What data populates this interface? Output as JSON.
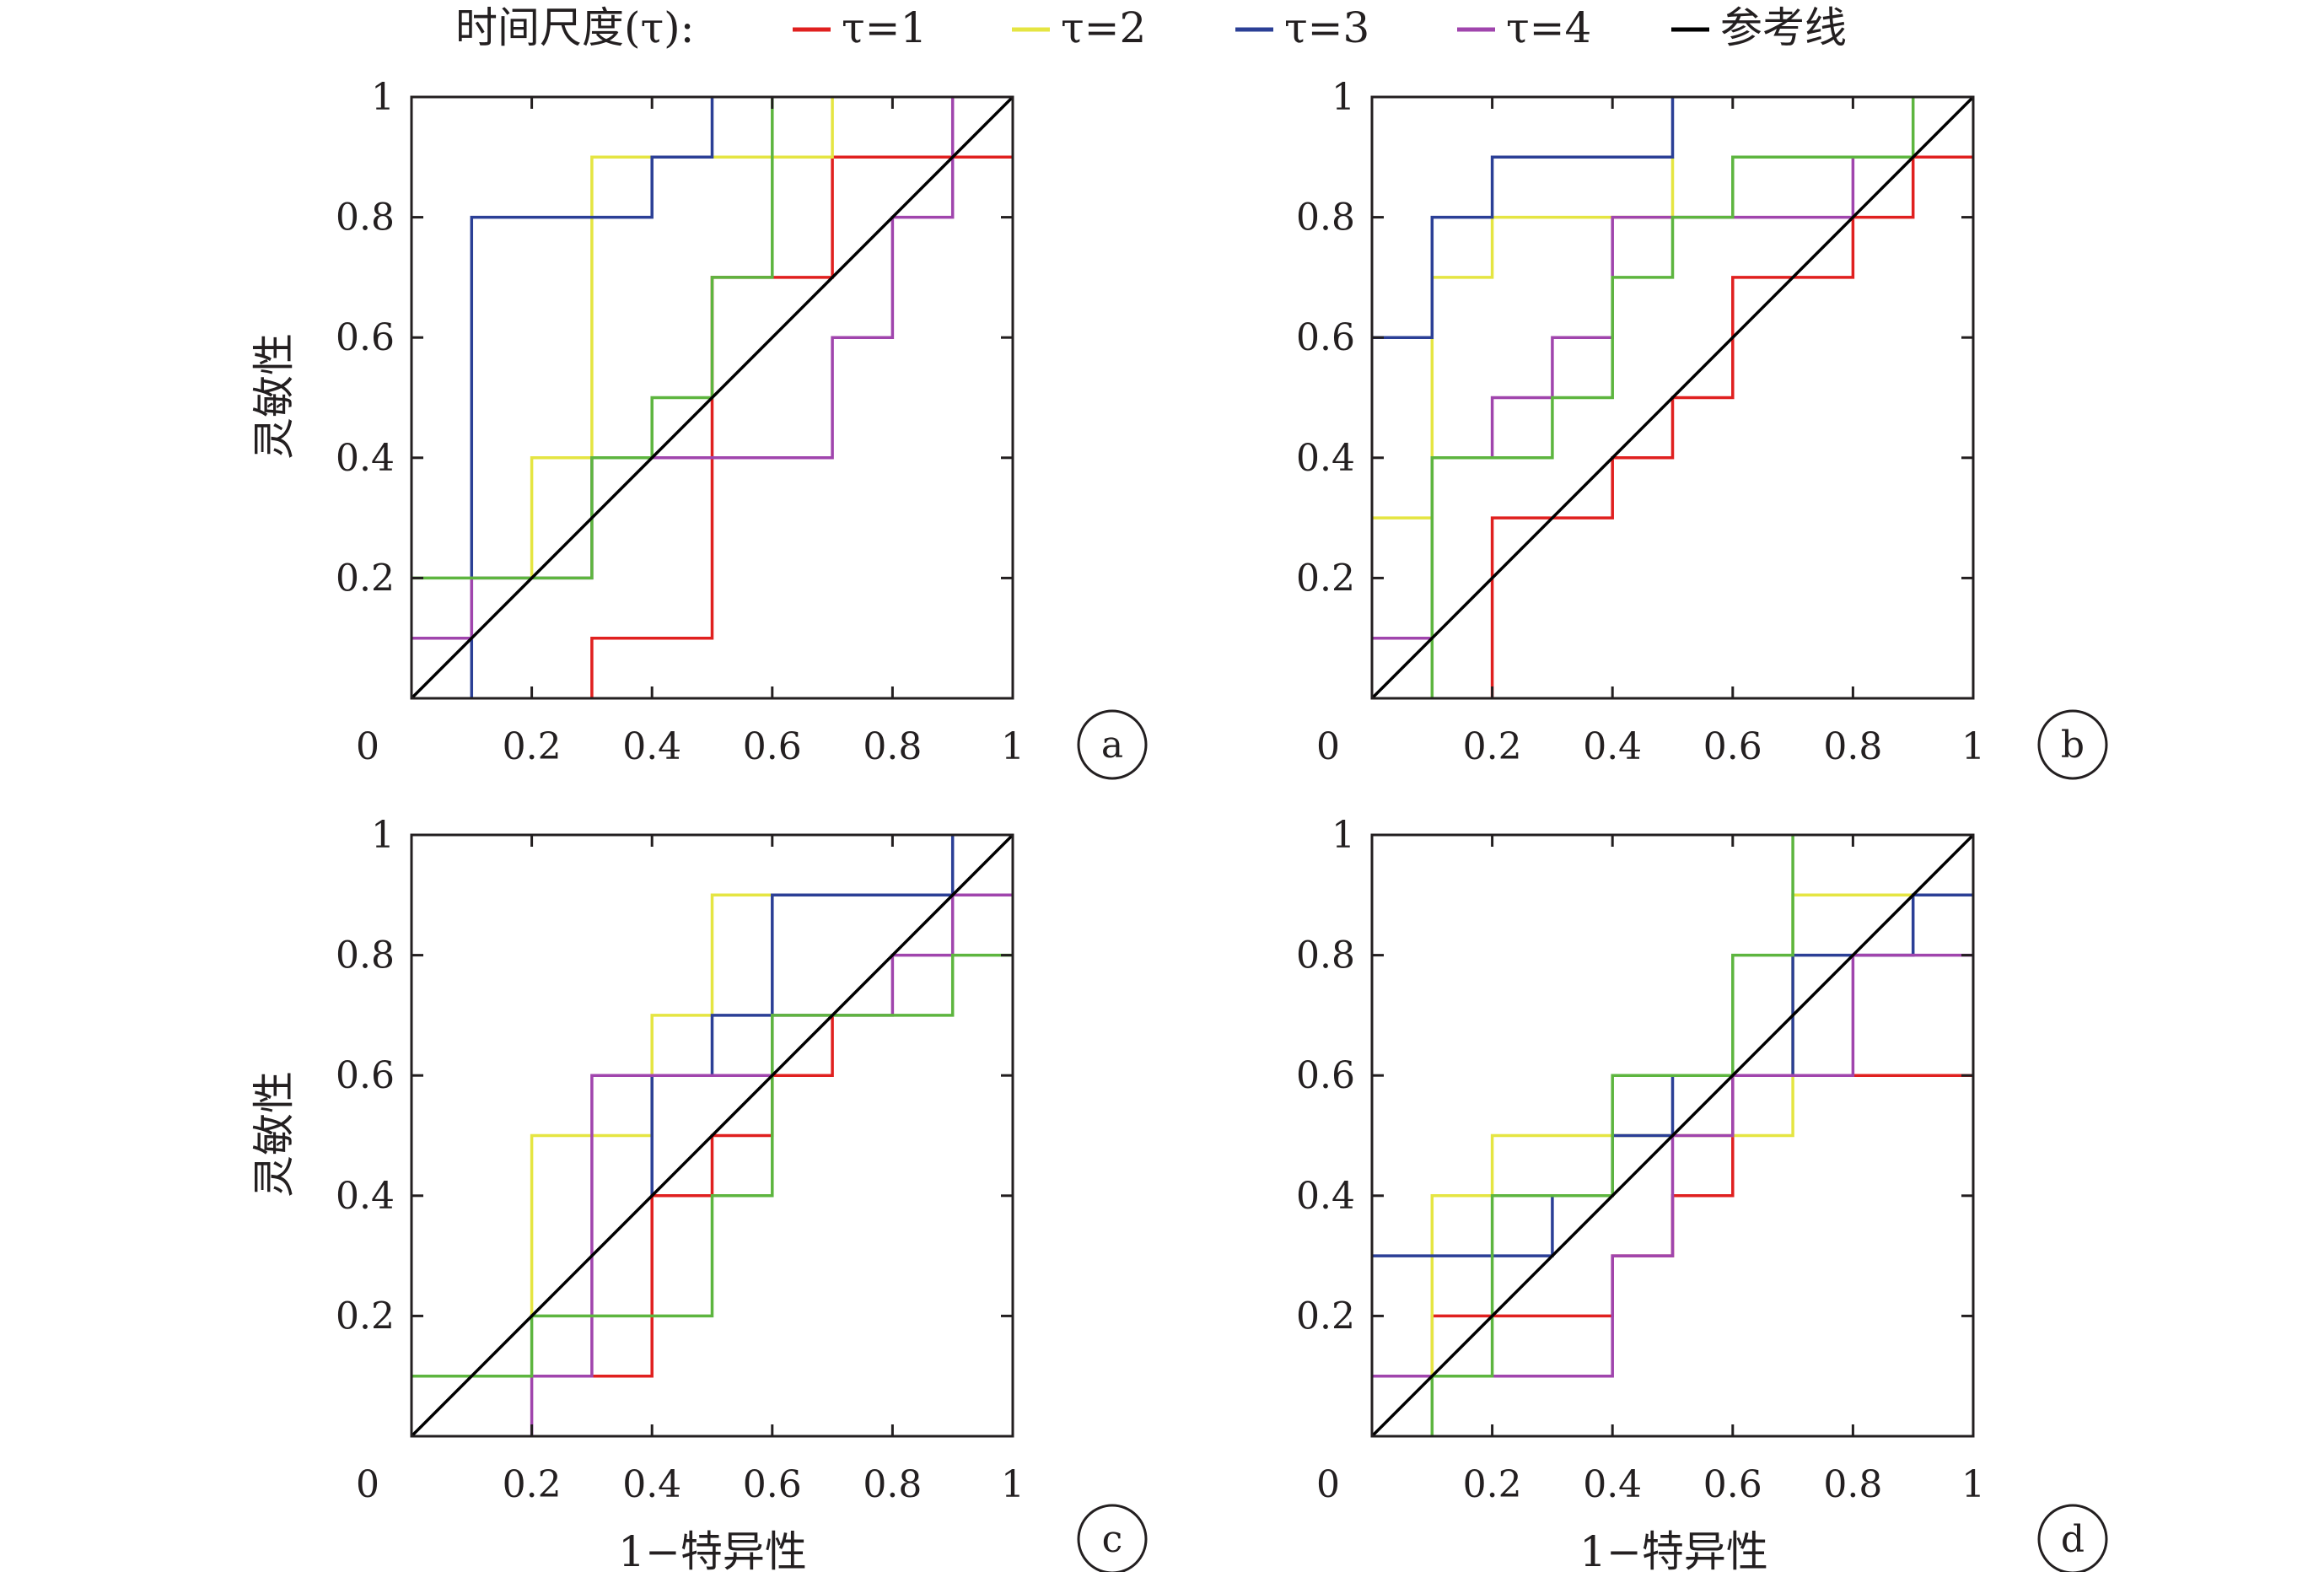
{
  "legend": {
    "title": "时间尺度(τ):",
    "entries": [
      {
        "label": "τ=1",
        "color": "#e0201f"
      },
      {
        "label": "τ=2",
        "color": "#e5e542"
      },
      {
        "label": "τ=3",
        "color": "#2b3f96"
      },
      {
        "label": "τ=4",
        "color": "#a045ad"
      },
      {
        "label": "参考线",
        "color": "#000000"
      }
    ]
  },
  "axes": {
    "ylabel": "灵敏性",
    "xlabel": "1−特异性",
    "x_ticks": [
      "0",
      "0.2",
      "0.4",
      "0.6",
      "0.8",
      "1"
    ],
    "y_ticks": [
      "0.2",
      "0.4",
      "0.6",
      "0.8",
      "1"
    ]
  },
  "chart_data": [
    {
      "type": "line",
      "panel": "a",
      "xlim": [
        0,
        1
      ],
      "ylim": [
        0,
        1
      ],
      "series": [
        {
          "name": "τ=1",
          "color": "#e0201f",
          "points": [
            [
              0.3,
              0
            ],
            [
              0.3,
              0.1
            ],
            [
              0.5,
              0.1
            ],
            [
              0.5,
              0.5
            ],
            [
              0.5,
              0.7
            ],
            [
              0.7,
              0.7
            ],
            [
              0.7,
              0.9
            ],
            [
              1,
              0.9
            ]
          ]
        },
        {
          "name": "τ=2",
          "color": "#e5e542",
          "points": [
            [
              0.2,
              0.2
            ],
            [
              0.2,
              0.4
            ],
            [
              0.3,
              0.4
            ],
            [
              0.3,
              0.9
            ],
            [
              0.7,
              0.9
            ],
            [
              0.7,
              1
            ]
          ]
        },
        {
          "name": "τ=3",
          "color": "#2b3f96",
          "points": [
            [
              0.1,
              0
            ],
            [
              0.1,
              0.8
            ],
            [
              0.4,
              0.8
            ],
            [
              0.4,
              0.9
            ],
            [
              0.5,
              0.9
            ],
            [
              0.5,
              1
            ]
          ]
        },
        {
          "name": "τ=4",
          "color": "#a045ad",
          "points": [
            [
              0,
              0.1
            ],
            [
              0.1,
              0.1
            ],
            [
              0.1,
              0.2
            ],
            [
              0.3,
              0.2
            ],
            [
              0.3,
              0.4
            ],
            [
              0.7,
              0.4
            ],
            [
              0.7,
              0.6
            ],
            [
              0.8,
              0.6
            ],
            [
              0.8,
              0.8
            ],
            [
              0.9,
              0.8
            ],
            [
              0.9,
              1
            ]
          ]
        },
        {
          "color": "#5db53f",
          "points": [
            [
              0,
              0.2
            ],
            [
              0.3,
              0.2
            ],
            [
              0.3,
              0.4
            ],
            [
              0.4,
              0.4
            ],
            [
              0.4,
              0.5
            ],
            [
              0.5,
              0.5
            ],
            [
              0.5,
              0.7
            ],
            [
              0.6,
              0.7
            ],
            [
              0.6,
              1
            ]
          ]
        },
        {
          "name": "参考线",
          "color": "#000000",
          "points": [
            [
              0,
              0
            ],
            [
              1,
              1
            ]
          ]
        }
      ]
    },
    {
      "type": "line",
      "panel": "b",
      "xlim": [
        0,
        1
      ],
      "ylim": [
        0,
        1
      ],
      "series": [
        {
          "name": "τ=1",
          "color": "#e0201f",
          "points": [
            [
              0.2,
              0
            ],
            [
              0.2,
              0.3
            ],
            [
              0.4,
              0.3
            ],
            [
              0.4,
              0.4
            ],
            [
              0.5,
              0.4
            ],
            [
              0.5,
              0.5
            ],
            [
              0.6,
              0.5
            ],
            [
              0.6,
              0.7
            ],
            [
              0.8,
              0.7
            ],
            [
              0.8,
              0.8
            ],
            [
              0.9,
              0.8
            ],
            [
              0.9,
              0.9
            ],
            [
              1,
              0.9
            ]
          ]
        },
        {
          "name": "τ=2",
          "color": "#e5e542",
          "points": [
            [
              0,
              0.3
            ],
            [
              0.1,
              0.3
            ],
            [
              0.1,
              0.7
            ],
            [
              0.2,
              0.7
            ],
            [
              0.2,
              0.8
            ],
            [
              0.5,
              0.8
            ],
            [
              0.5,
              0.9
            ]
          ]
        },
        {
          "name": "τ=3",
          "color": "#2b3f96",
          "points": [
            [
              0,
              0.6
            ],
            [
              0.1,
              0.6
            ],
            [
              0.1,
              0.8
            ],
            [
              0.2,
              0.8
            ],
            [
              0.2,
              0.9
            ],
            [
              0.5,
              0.9
            ],
            [
              0.5,
              1
            ]
          ]
        },
        {
          "name": "τ=4",
          "color": "#a045ad",
          "points": [
            [
              0,
              0.1
            ],
            [
              0.1,
              0.1
            ],
            [
              0.1,
              0.4
            ],
            [
              0.2,
              0.4
            ],
            [
              0.2,
              0.5
            ],
            [
              0.3,
              0.5
            ],
            [
              0.3,
              0.6
            ],
            [
              0.4,
              0.6
            ],
            [
              0.4,
              0.8
            ],
            [
              0.8,
              0.8
            ],
            [
              0.8,
              0.9
            ]
          ]
        },
        {
          "color": "#5db53f",
          "points": [
            [
              0.1,
              0
            ],
            [
              0.1,
              0.4
            ],
            [
              0.3,
              0.4
            ],
            [
              0.3,
              0.5
            ],
            [
              0.4,
              0.5
            ],
            [
              0.4,
              0.7
            ],
            [
              0.5,
              0.7
            ],
            [
              0.5,
              0.8
            ],
            [
              0.6,
              0.8
            ],
            [
              0.6,
              0.9
            ],
            [
              0.9,
              0.9
            ],
            [
              0.9,
              1
            ]
          ]
        },
        {
          "name": "参考线",
          "color": "#000000",
          "points": [
            [
              0,
              0
            ],
            [
              1,
              1
            ]
          ]
        }
      ]
    },
    {
      "type": "line",
      "panel": "c",
      "xlim": [
        0,
        1
      ],
      "ylim": [
        0,
        1
      ],
      "series": [
        {
          "name": "τ=1",
          "color": "#e0201f",
          "points": [
            [
              0.3,
              0.1
            ],
            [
              0.4,
              0.1
            ],
            [
              0.4,
              0.4
            ],
            [
              0.5,
              0.4
            ],
            [
              0.5,
              0.5
            ],
            [
              0.6,
              0.5
            ],
            [
              0.6,
              0.6
            ],
            [
              0.7,
              0.6
            ],
            [
              0.7,
              0.7
            ]
          ]
        },
        {
          "name": "τ=2",
          "color": "#e5e542",
          "points": [
            [
              0.2,
              0.2
            ],
            [
              0.2,
              0.5
            ],
            [
              0.4,
              0.5
            ],
            [
              0.4,
              0.7
            ],
            [
              0.5,
              0.7
            ],
            [
              0.5,
              0.9
            ],
            [
              0.6,
              0.9
            ]
          ]
        },
        {
          "name": "τ=3",
          "color": "#2b3f96",
          "points": [
            [
              0.4,
              0.4
            ],
            [
              0.4,
              0.6
            ],
            [
              0.5,
              0.6
            ],
            [
              0.5,
              0.7
            ],
            [
              0.6,
              0.7
            ],
            [
              0.6,
              0.9
            ],
            [
              0.9,
              0.9
            ],
            [
              0.9,
              1
            ]
          ]
        },
        {
          "name": "τ=4",
          "color": "#a045ad",
          "points": [
            [
              0.2,
              0
            ],
            [
              0.2,
              0.1
            ],
            [
              0.3,
              0.1
            ],
            [
              0.3,
              0.6
            ],
            [
              0.6,
              0.6
            ],
            [
              0.6,
              0.7
            ],
            [
              0.8,
              0.7
            ],
            [
              0.8,
              0.8
            ],
            [
              0.9,
              0.8
            ],
            [
              0.9,
              0.9
            ],
            [
              1,
              0.9
            ]
          ]
        },
        {
          "color": "#5db53f",
          "points": [
            [
              0,
              0.1
            ],
            [
              0.2,
              0.1
            ],
            [
              0.2,
              0.2
            ],
            [
              0.5,
              0.2
            ],
            [
              0.5,
              0.4
            ],
            [
              0.6,
              0.4
            ],
            [
              0.6,
              0.7
            ],
            [
              0.9,
              0.7
            ],
            [
              0.9,
              0.8
            ],
            [
              1,
              0.8
            ]
          ]
        },
        {
          "name": "参考线",
          "color": "#000000",
          "points": [
            [
              0,
              0
            ],
            [
              1,
              1
            ]
          ]
        }
      ]
    },
    {
      "type": "line",
      "panel": "d",
      "xlim": [
        0,
        1
      ],
      "ylim": [
        0,
        1
      ],
      "series": [
        {
          "name": "τ=1",
          "color": "#e0201f",
          "points": [
            [
              0.1,
              0.1
            ],
            [
              0.1,
              0.2
            ],
            [
              0.4,
              0.2
            ],
            [
              0.4,
              0.3
            ],
            [
              0.5,
              0.3
            ],
            [
              0.5,
              0.4
            ],
            [
              0.6,
              0.4
            ],
            [
              0.6,
              0.6
            ],
            [
              1,
              0.6
            ]
          ]
        },
        {
          "name": "τ=2",
          "color": "#e5e542",
          "points": [
            [
              0.1,
              0.1
            ],
            [
              0.1,
              0.4
            ],
            [
              0.2,
              0.4
            ],
            [
              0.2,
              0.5
            ],
            [
              0.6,
              0.5
            ],
            [
              0.6,
              0.5
            ],
            [
              0.7,
              0.5
            ],
            [
              0.7,
              0.9
            ],
            [
              0.9,
              0.9
            ]
          ]
        },
        {
          "name": "τ=3",
          "color": "#2b3f96",
          "points": [
            [
              0,
              0.3
            ],
            [
              0.3,
              0.3
            ],
            [
              0.3,
              0.4
            ],
            [
              0.4,
              0.4
            ],
            [
              0.4,
              0.5
            ],
            [
              0.5,
              0.5
            ],
            [
              0.5,
              0.6
            ],
            [
              0.7,
              0.6
            ],
            [
              0.7,
              0.8
            ],
            [
              0.9,
              0.8
            ],
            [
              0.9,
              0.9
            ],
            [
              1,
              0.9
            ]
          ]
        },
        {
          "name": "τ=4",
          "color": "#a045ad",
          "points": [
            [
              0,
              0.1
            ],
            [
              0.4,
              0.1
            ],
            [
              0.4,
              0.3
            ],
            [
              0.5,
              0.3
            ],
            [
              0.5,
              0.5
            ],
            [
              0.6,
              0.5
            ],
            [
              0.6,
              0.6
            ],
            [
              0.8,
              0.6
            ],
            [
              0.8,
              0.8
            ],
            [
              1,
              0.8
            ]
          ]
        },
        {
          "color": "#5db53f",
          "points": [
            [
              0.1,
              0
            ],
            [
              0.1,
              0.1
            ],
            [
              0.2,
              0.1
            ],
            [
              0.2,
              0.4
            ],
            [
              0.4,
              0.4
            ],
            [
              0.4,
              0.6
            ],
            [
              0.6,
              0.6
            ],
            [
              0.6,
              0.8
            ],
            [
              0.7,
              0.8
            ],
            [
              0.7,
              1
            ]
          ]
        },
        {
          "name": "参考线",
          "color": "#000000",
          "points": [
            [
              0,
              0
            ],
            [
              1,
              1
            ]
          ]
        }
      ]
    }
  ]
}
